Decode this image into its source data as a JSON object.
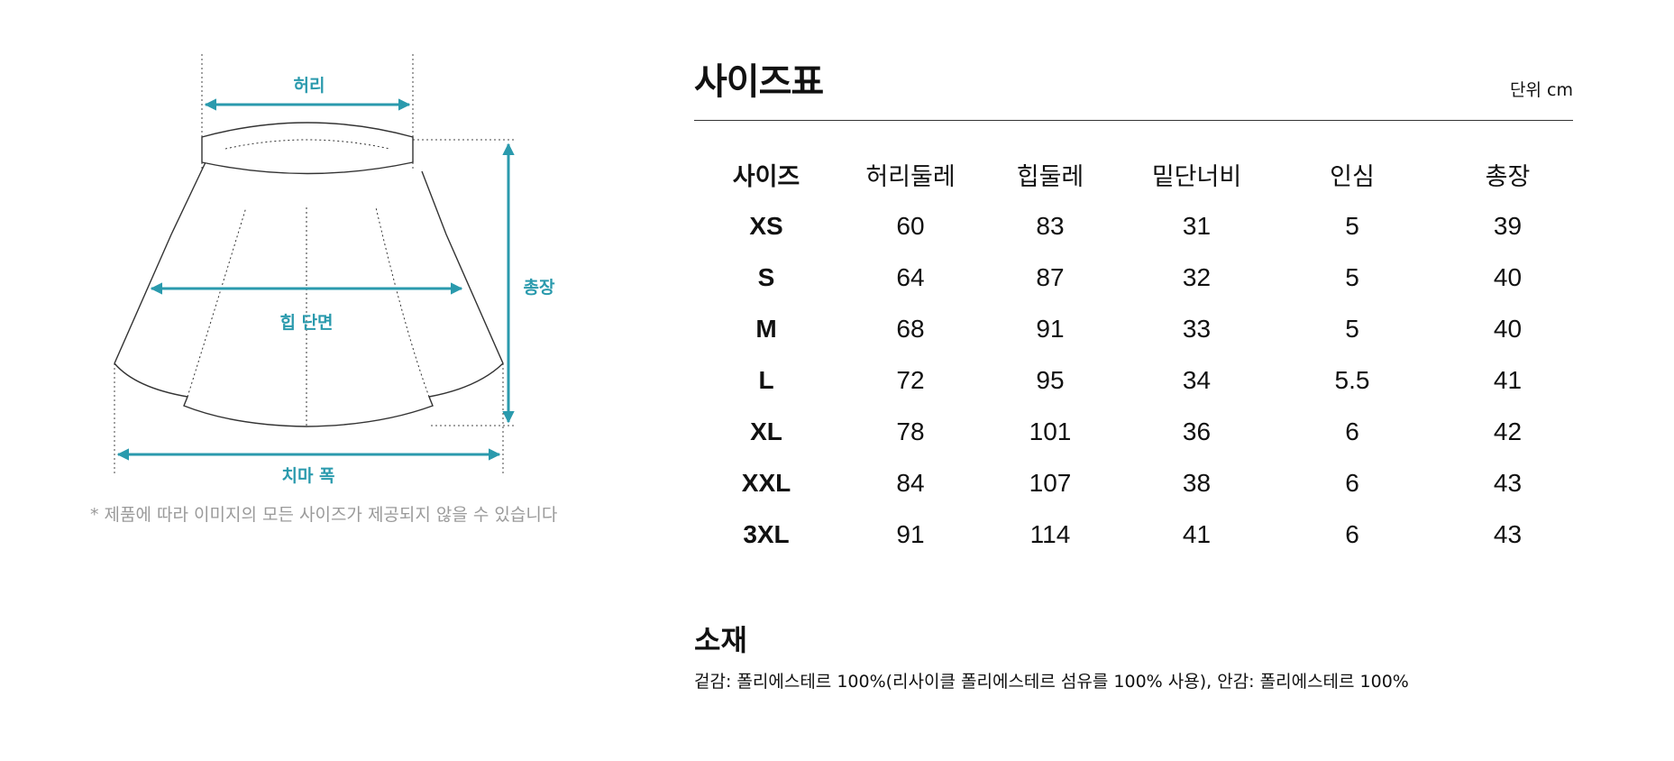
{
  "colors": {
    "accent": "#2a9aad",
    "text": "#111111",
    "note": "#9a9a9a"
  },
  "diagram": {
    "labels": {
      "waist": "허리",
      "length": "총장",
      "hip": "힙 단면",
      "hem": "치마 폭"
    },
    "note": "* 제품에 따라 이미지의 모든 사이즈가 제공되지 않을 수 있습니다"
  },
  "size_chart": {
    "title": "사이즈표",
    "unit": "단위 cm",
    "headers": [
      "사이즈",
      "허리둘레",
      "힙둘레",
      "밑단너비",
      "인심",
      "총장"
    ],
    "rows": [
      [
        "XS",
        "60",
        "83",
        "31",
        "5",
        "39"
      ],
      [
        "S",
        "64",
        "87",
        "32",
        "5",
        "40"
      ],
      [
        "M",
        "68",
        "91",
        "33",
        "5",
        "40"
      ],
      [
        "L",
        "72",
        "95",
        "34",
        "5.5",
        "41"
      ],
      [
        "XL",
        "78",
        "101",
        "36",
        "6",
        "42"
      ],
      [
        "XXL",
        "84",
        "107",
        "38",
        "6",
        "43"
      ],
      [
        "3XL",
        "91",
        "114",
        "41",
        "6",
        "43"
      ]
    ]
  },
  "material": {
    "title": "소재",
    "text": "겉감: 폴리에스테르 100%(리사이클 폴리에스테르 섬유를 100% 사용), 안감: 폴리에스테르 100%"
  }
}
